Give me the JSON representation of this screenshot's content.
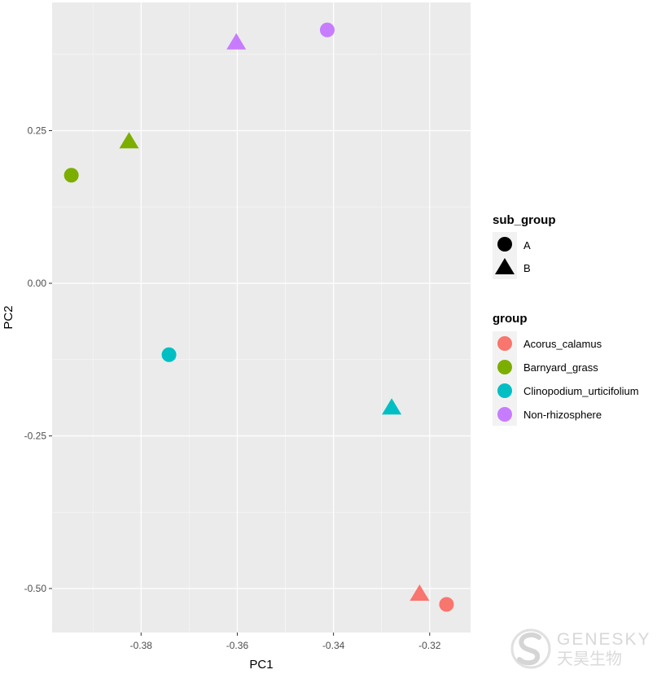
{
  "chart_data": {
    "type": "scatter",
    "title": "",
    "xlabel": "PC1",
    "ylabel": "PC2",
    "xlim": [
      -0.3985,
      -0.3115
    ],
    "ylim": [
      -0.572,
      0.46
    ],
    "x_ticks": [
      -0.38,
      -0.36,
      -0.34,
      -0.32
    ],
    "x_tick_labels": [
      "-0.38",
      "-0.36",
      "-0.34",
      "-0.32"
    ],
    "y_ticks": [
      0.25,
      0.0,
      -0.25,
      -0.5
    ],
    "y_tick_labels": [
      "0.25",
      "0.00",
      "-0.25",
      "-0.50"
    ],
    "grid": true,
    "legend_position": "right",
    "background": "#EBEBEB",
    "points": [
      {
        "x": -0.3945,
        "y": 0.177,
        "group": "Barnyard_grass",
        "sub_group": "A"
      },
      {
        "x": -0.3825,
        "y": 0.233,
        "group": "Barnyard_grass",
        "sub_group": "B"
      },
      {
        "x": -0.3742,
        "y": -0.117,
        "group": "Clinopodium_urticifolium",
        "sub_group": "A"
      },
      {
        "x": -0.3602,
        "y": 0.395,
        "group": "Non-rhizosphere",
        "sub_group": "B"
      },
      {
        "x": -0.3413,
        "y": 0.415,
        "group": "Non-rhizosphere",
        "sub_group": "A"
      },
      {
        "x": -0.3279,
        "y": -0.203,
        "group": "Clinopodium_urticifolium",
        "sub_group": "B"
      },
      {
        "x": -0.3221,
        "y": -0.508,
        "group": "Acorus_calamus",
        "sub_group": "B"
      },
      {
        "x": -0.3165,
        "y": -0.526,
        "group": "Acorus_calamus",
        "sub_group": "A"
      }
    ],
    "legends": {
      "sub_group": {
        "title": "sub_group",
        "entries": [
          {
            "label": "A",
            "shape": "circle"
          },
          {
            "label": "B",
            "shape": "triangle"
          }
        ]
      },
      "group": {
        "title": "group",
        "entries": [
          {
            "label": "Acorus_calamus",
            "color": "#F8766D"
          },
          {
            "label": "Barnyard_grass",
            "color": "#7CAE00"
          },
          {
            "label": "Clinopodium_urticifolium",
            "color": "#00BFC4"
          },
          {
            "label": "Non-rhizosphere",
            "color": "#C77CFF"
          }
        ]
      }
    }
  },
  "watermark": {
    "brand_en": "GENESKY",
    "brand_cn": "天昊生物"
  }
}
